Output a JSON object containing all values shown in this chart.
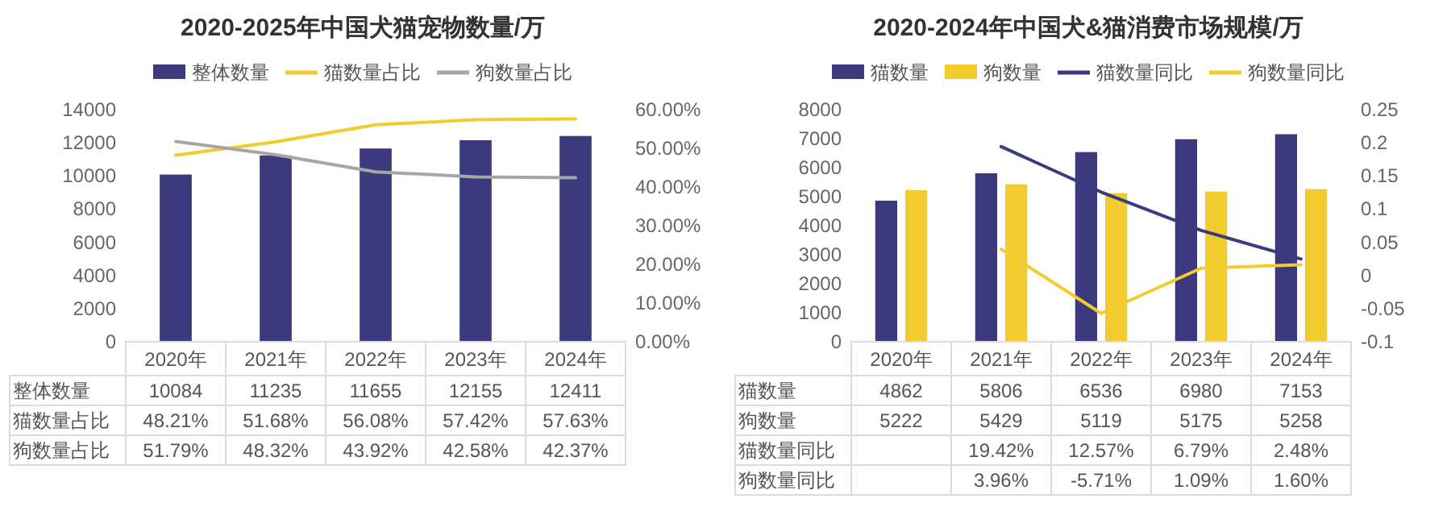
{
  "chart_data": [
    {
      "type": "bar",
      "title": "2020-2025年中国犬猫宠物数量/万",
      "categories": [
        "2020年",
        "2021年",
        "2022年",
        "2023年",
        "2024年"
      ],
      "series": [
        {
          "name": "整体数量",
          "color": "#3b3a7c",
          "values": [
            10084,
            11235,
            11655,
            12155,
            12411
          ]
        },
        {
          "name": "猫数量占比",
          "type": "line",
          "axis": "y2",
          "color": "#f2cc2f",
          "values": [
            48.21,
            51.68,
            56.08,
            57.42,
            57.63
          ],
          "value_labels": [
            "48.21%",
            "51.68%",
            "56.08%",
            "57.42%",
            "57.63%"
          ]
        },
        {
          "name": "狗数量占比",
          "type": "line",
          "axis": "y2",
          "color": "#a6a6a6",
          "values": [
            51.79,
            48.32,
            43.92,
            42.58,
            42.37
          ],
          "value_labels": [
            "51.79%",
            "48.32%",
            "43.92%",
            "42.58%",
            "42.37%"
          ]
        }
      ],
      "ylim": [
        0,
        14000
      ],
      "yticks": [
        0,
        2000,
        4000,
        6000,
        8000,
        10000,
        12000,
        14000
      ],
      "y2lim": [
        0,
        60
      ],
      "y2ticks": [
        {
          "value": 0,
          "label": "0.00%"
        },
        {
          "value": 10,
          "label": "10.00%"
        },
        {
          "value": 20,
          "label": "20.00%"
        },
        {
          "value": 30,
          "label": "30.00%"
        },
        {
          "value": 40,
          "label": "40.00%"
        },
        {
          "value": 50,
          "label": "50.00%"
        },
        {
          "value": 60,
          "label": "60.00%"
        }
      ],
      "legend": "top",
      "data_labels": true
    },
    {
      "type": "bar",
      "title": "2020-2024年中国犬&猫消费市场规模/万",
      "categories": [
        "2020年",
        "2021年",
        "2022年",
        "2023年",
        "2024年"
      ],
      "series": [
        {
          "name": "猫数量",
          "color": "#3b3a7c",
          "values": [
            4862,
            5806,
            6536,
            6980,
            7153
          ]
        },
        {
          "name": "狗数量",
          "color": "#f2cc2f",
          "values": [
            5222,
            5429,
            5119,
            5175,
            5258
          ]
        },
        {
          "name": "猫数量同比",
          "type": "line",
          "axis": "y2",
          "color": "#3b3a7c",
          "values": [
            null,
            0.1942,
            0.1257,
            0.0679,
            0.0248
          ],
          "value_labels": [
            null,
            "19.42%",
            "12.57%",
            "6.79%",
            "2.48%"
          ]
        },
        {
          "name": "狗数量同比",
          "type": "line",
          "axis": "y2",
          "color": "#f2cc2f",
          "values": [
            null,
            0.0396,
            -0.0571,
            0.0109,
            0.016
          ],
          "value_labels": [
            null,
            "3.96%",
            "-5.71%",
            "1.09%",
            "1.60%"
          ]
        }
      ],
      "ylim": [
        0,
        8000
      ],
      "yticks": [
        0,
        1000,
        2000,
        3000,
        4000,
        5000,
        6000,
        7000,
        8000
      ],
      "y2lim": [
        -0.1,
        0.25
      ],
      "y2ticks": [
        {
          "value": -0.1,
          "label": "-0.1"
        },
        {
          "value": -0.05,
          "label": "-0.05"
        },
        0,
        0.05,
        {
          "value": 0.1,
          "label": "0.1"
        },
        0.15,
        {
          "value": 0.2,
          "label": "0.2"
        },
        0.25
      ],
      "legend": "top",
      "data_labels": true
    }
  ]
}
